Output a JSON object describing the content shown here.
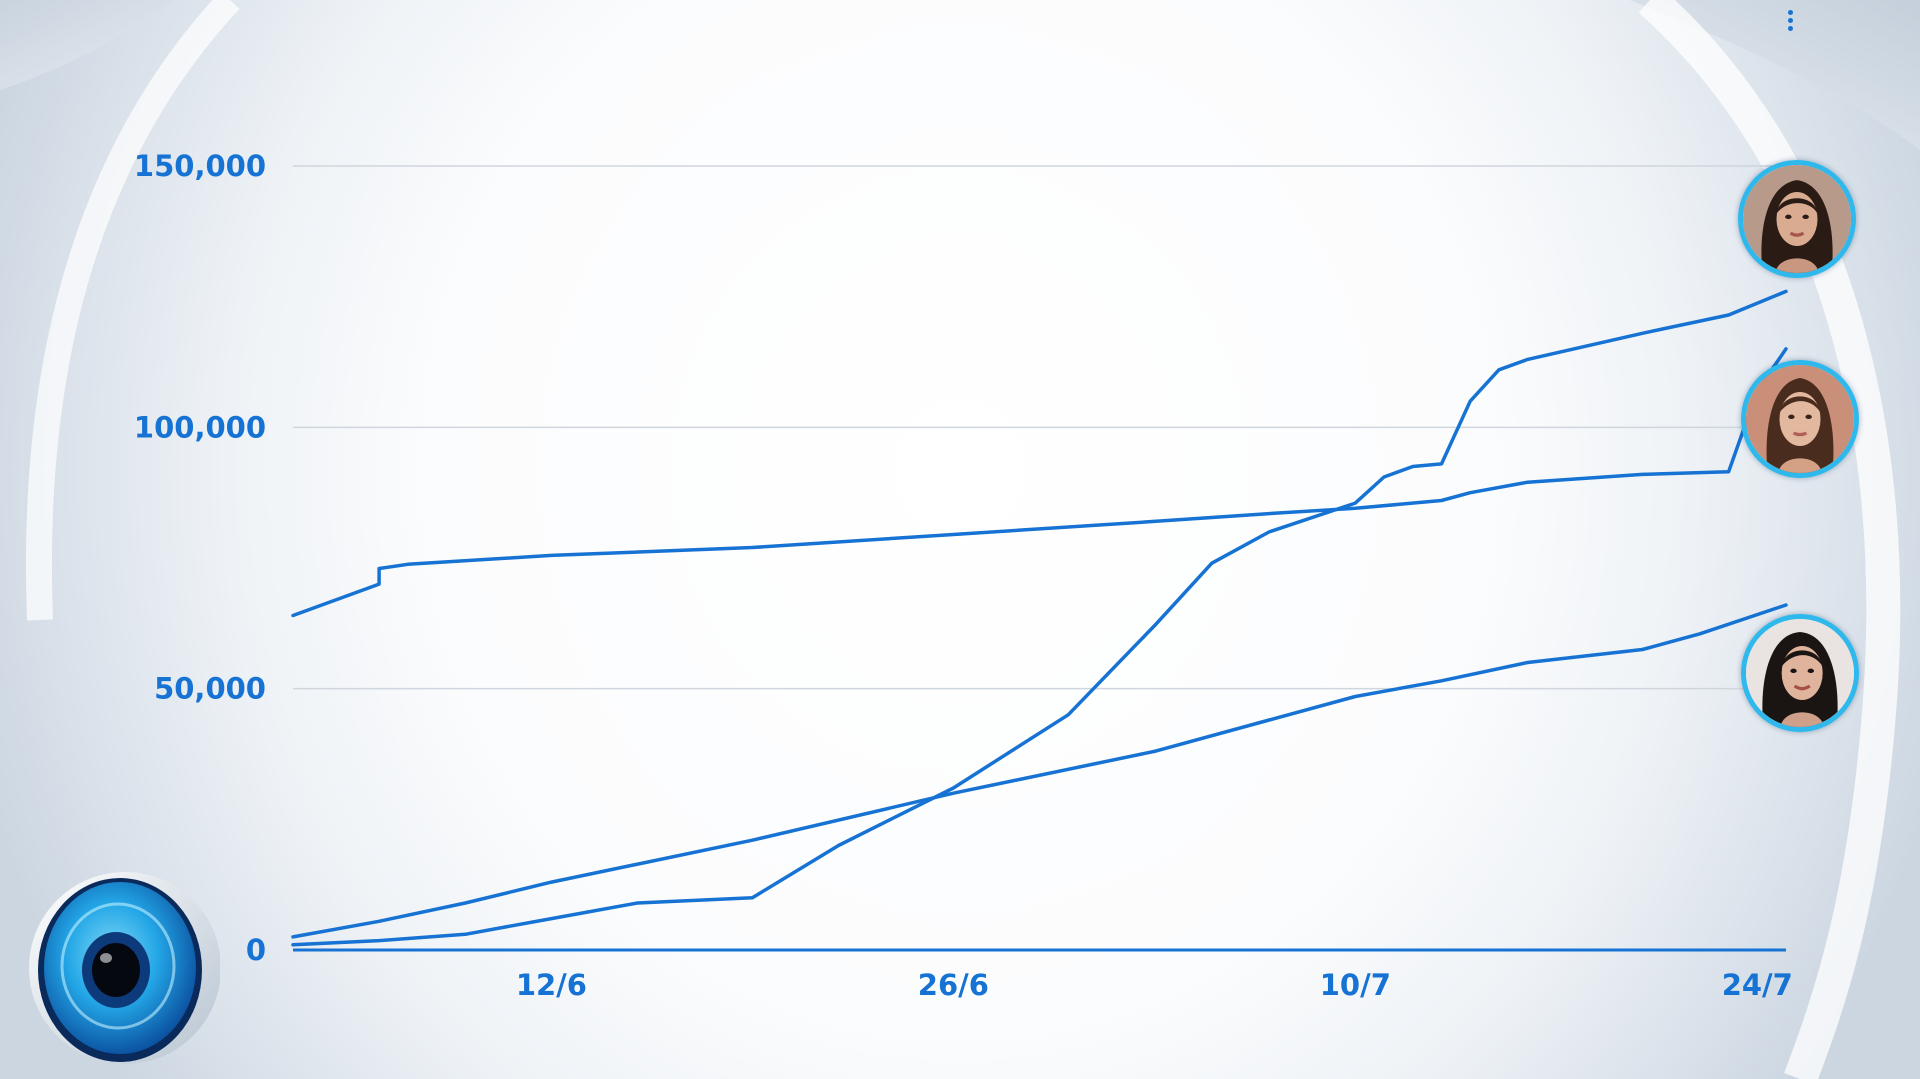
{
  "colors": {
    "line": "#1673d4",
    "tick_text": "#1673d4",
    "gridline": "#cfd6de",
    "ring": "#2fb8ec"
  },
  "chart_data": {
    "type": "line",
    "title": "",
    "xlabel": "",
    "ylabel": "",
    "ylim": [
      0,
      150000
    ],
    "xlim": [
      "2025-06-03",
      "2025-07-25"
    ],
    "yticks": [
      {
        "value": 150000,
        "label": "150,000"
      },
      {
        "value": 100000,
        "label": "100,000"
      },
      {
        "value": 50000,
        "label": "50,000"
      },
      {
        "value": 0,
        "label": "0"
      }
    ],
    "xticks": [
      {
        "date": "2025-06-12",
        "label": "12/6"
      },
      {
        "date": "2025-06-26",
        "label": "26/6"
      },
      {
        "date": "2025-07-10",
        "label": "10/7"
      },
      {
        "date": "2025-07-24",
        "label": "24/7"
      }
    ],
    "grid": true,
    "legend": "avatars at right end of lines",
    "series": [
      {
        "avatar_icon": "woman-dark-hair-icon",
        "points": [
          [
            "2025-06-03",
            1000
          ],
          [
            "2025-06-06",
            1800
          ],
          [
            "2025-06-09",
            3000
          ],
          [
            "2025-06-12",
            6000
          ],
          [
            "2025-06-15",
            9000
          ],
          [
            "2025-06-19",
            10000
          ],
          [
            "2025-06-22",
            20000
          ],
          [
            "2025-06-26",
            31000
          ],
          [
            "2025-06-30",
            45000
          ],
          [
            "2025-07-03",
            62000
          ],
          [
            "2025-07-05",
            74000
          ],
          [
            "2025-07-07",
            80000
          ],
          [
            "2025-07-10",
            85500
          ],
          [
            "2025-07-11",
            90500
          ],
          [
            "2025-07-12",
            92500
          ],
          [
            "2025-07-13",
            93000
          ],
          [
            "2025-07-14",
            105000
          ],
          [
            "2025-07-15",
            111000
          ],
          [
            "2025-07-16",
            113000
          ],
          [
            "2025-07-20",
            118000
          ],
          [
            "2025-07-23",
            121500
          ],
          [
            "2025-07-25",
            126000
          ]
        ]
      },
      {
        "avatar_icon": "woman-brown-hair-icon",
        "points": [
          [
            "2025-06-03",
            64000
          ],
          [
            "2025-06-06",
            70000
          ],
          [
            "2025-06-06",
            73000
          ],
          [
            "2025-06-07",
            73800
          ],
          [
            "2025-06-12",
            75500
          ],
          [
            "2025-06-19",
            77000
          ],
          [
            "2025-06-26",
            79500
          ],
          [
            "2025-07-03",
            82000
          ],
          [
            "2025-07-07",
            83500
          ],
          [
            "2025-07-10",
            84500
          ],
          [
            "2025-07-13",
            86000
          ],
          [
            "2025-07-14",
            87500
          ],
          [
            "2025-07-16",
            89500
          ],
          [
            "2025-07-20",
            91000
          ],
          [
            "2025-07-23",
            91500
          ],
          [
            "2025-07-24",
            107000
          ],
          [
            "2025-07-25",
            115000
          ]
        ]
      },
      {
        "avatar_icon": "woman-black-hair-icon",
        "points": [
          [
            "2025-06-03",
            2500
          ],
          [
            "2025-06-06",
            5500
          ],
          [
            "2025-06-09",
            9000
          ],
          [
            "2025-06-12",
            13000
          ],
          [
            "2025-06-19",
            21000
          ],
          [
            "2025-06-26",
            30000
          ],
          [
            "2025-07-03",
            38000
          ],
          [
            "2025-07-07",
            44000
          ],
          [
            "2025-07-10",
            48500
          ],
          [
            "2025-07-13",
            51500
          ],
          [
            "2025-07-16",
            55000
          ],
          [
            "2025-07-20",
            57500
          ],
          [
            "2025-07-22",
            60500
          ],
          [
            "2025-07-25",
            66000
          ]
        ]
      }
    ]
  }
}
